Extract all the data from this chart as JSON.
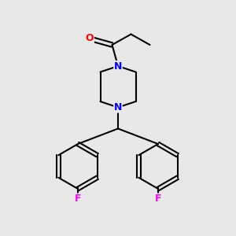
{
  "bg_color": "#e8e8e8",
  "bond_color": "#000000",
  "N_color": "#0000ff",
  "O_color": "#ff0000",
  "F_color": "#ff00ff",
  "line_width": 1.5,
  "figsize": [
    3.0,
    3.0
  ],
  "dpi": 100,
  "xlim": [
    0,
    10
  ],
  "ylim": [
    0,
    10
  ]
}
